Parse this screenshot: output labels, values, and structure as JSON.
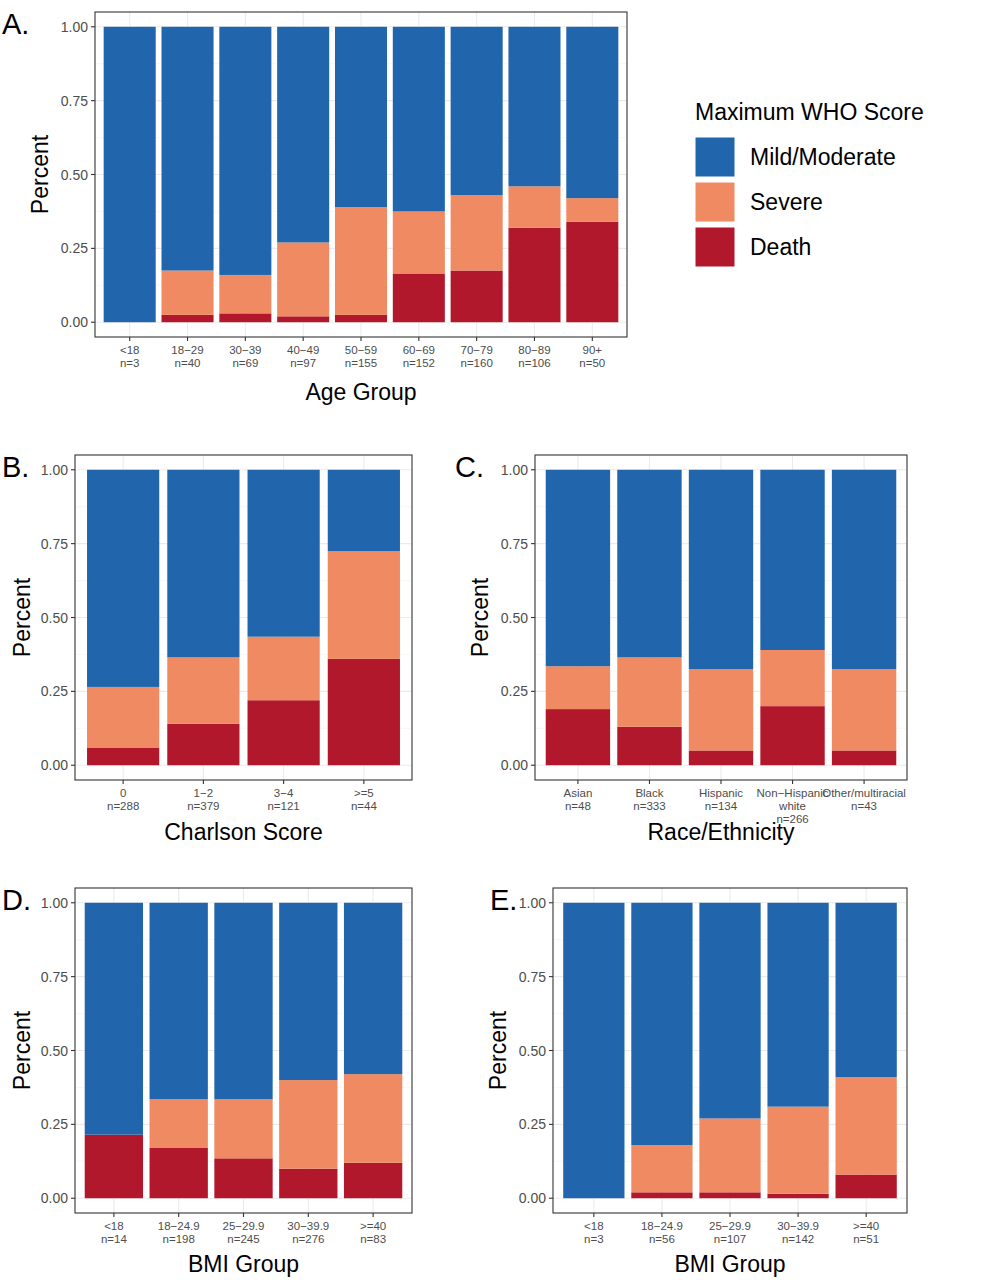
{
  "chart_data": [
    {
      "type": "bar",
      "stacked": true,
      "grid": true,
      "title": "A.",
      "x_label": "Age Group",
      "y_label": "Percent",
      "legend": "right",
      "legend_title": "Maximum WHO Score",
      "categories": [
        "<18\nn=3",
        "18−29\nn=40",
        "30−39\nn=69",
        "40−49\nn=97",
        "50−59\nn=155",
        "60−69\nn=152",
        "70−79\nn=160",
        "80−89\nn=106",
        "90+\nn=50"
      ],
      "series": [
        {
          "name": "Mild/Moderate",
          "color": "#2166ac",
          "values": [
            1.0,
            0.825,
            0.84,
            0.73,
            0.61,
            0.625,
            0.57,
            0.54,
            0.58
          ]
        },
        {
          "name": "Severe",
          "color": "#ef8a62",
          "values": [
            0.0,
            0.15,
            0.13,
            0.25,
            0.365,
            0.21,
            0.255,
            0.14,
            0.08
          ]
        },
        {
          "name": "Death",
          "color": "#b2182b",
          "values": [
            0.0,
            0.025,
            0.03,
            0.02,
            0.025,
            0.165,
            0.175,
            0.32,
            0.34
          ]
        }
      ],
      "ylim": [
        -0.05,
        1.05
      ],
      "yticks": [
        {
          "value": 0,
          "label": "0.00"
        },
        {
          "value": 0.25,
          "label": "0.25"
        },
        {
          "value": 0.5,
          "label": "0.50"
        },
        {
          "value": 0.75,
          "label": "0.75"
        },
        {
          "value": 1,
          "label": "1.00"
        }
      ]
    },
    {
      "type": "bar",
      "stacked": true,
      "grid": true,
      "title": "B.",
      "x_label": "Charlson Score",
      "y_label": "Percent",
      "categories": [
        "0\nn=288",
        "1−2\nn=379",
        "3−4\nn=121",
        ">=5\nn=44"
      ],
      "series": [
        {
          "color": "#2166ac",
          "values": [
            0.735,
            0.635,
            0.565,
            0.275
          ]
        },
        {
          "color": "#ef8a62",
          "values": [
            0.205,
            0.225,
            0.215,
            0.365
          ]
        },
        {
          "color": "#b2182b",
          "values": [
            0.06,
            0.14,
            0.22,
            0.36
          ]
        }
      ],
      "ylim": [
        -0.05,
        1.05
      ],
      "yticks": [
        {
          "value": 0,
          "label": "0.00"
        },
        {
          "value": 0.25,
          "label": "0.25"
        },
        {
          "value": 0.5,
          "label": "0.50"
        },
        {
          "value": 0.75,
          "label": "0.75"
        },
        {
          "value": 1,
          "label": "1.00"
        }
      ]
    },
    {
      "type": "bar",
      "stacked": true,
      "grid": true,
      "title": "C.",
      "x_label": "Race/Ethnicity",
      "y_label": "Percent",
      "categories": [
        "Asian\nn=48",
        "Black\nn=333",
        "Hispanic\nn=134",
        "Non−Hispanic\nwhite\nn=266",
        "Other/multiracial\nn=43"
      ],
      "series": [
        {
          "color": "#2166ac",
          "values": [
            0.665,
            0.635,
            0.675,
            0.61,
            0.675
          ]
        },
        {
          "color": "#ef8a62",
          "values": [
            0.145,
            0.235,
            0.275,
            0.19,
            0.275
          ]
        },
        {
          "color": "#b2182b",
          "values": [
            0.19,
            0.13,
            0.05,
            0.2,
            0.05
          ]
        }
      ],
      "ylim": [
        -0.05,
        1.05
      ],
      "yticks": [
        {
          "value": 0,
          "label": "0.00"
        },
        {
          "value": 0.25,
          "label": "0.25"
        },
        {
          "value": 0.5,
          "label": "0.50"
        },
        {
          "value": 0.75,
          "label": "0.75"
        },
        {
          "value": 1,
          "label": "1.00"
        }
      ]
    },
    {
      "type": "bar",
      "stacked": true,
      "grid": true,
      "title": "D.",
      "x_label": "BMI Group",
      "y_label": "Percent",
      "categories": [
        "<18\nn=14",
        "18−24.9\nn=198",
        "25−29.9\nn=245",
        "30−39.9\nn=276",
        ">=40\nn=83"
      ],
      "series": [
        {
          "color": "#2166ac",
          "values": [
            0.785,
            0.665,
            0.665,
            0.6,
            0.58
          ]
        },
        {
          "color": "#ef8a62",
          "values": [
            0.0,
            0.165,
            0.2,
            0.3,
            0.3
          ]
        },
        {
          "color": "#b2182b",
          "values": [
            0.215,
            0.17,
            0.135,
            0.1,
            0.12
          ]
        }
      ],
      "ylim": [
        -0.05,
        1.05
      ],
      "yticks": [
        {
          "value": 0,
          "label": "0.00"
        },
        {
          "value": 0.25,
          "label": "0.25"
        },
        {
          "value": 0.5,
          "label": "0.50"
        },
        {
          "value": 0.75,
          "label": "0.75"
        },
        {
          "value": 1,
          "label": "1.00"
        }
      ]
    },
    {
      "type": "bar",
      "stacked": true,
      "grid": true,
      "title": "E.",
      "x_label": "BMI Group",
      "y_label": "Percent",
      "categories": [
        "<18\nn=3",
        "18−24.9\nn=56",
        "25−29.9\nn=107",
        "30−39.9\nn=142",
        ">=40\nn=51"
      ],
      "series": [
        {
          "color": "#2166ac",
          "values": [
            1.0,
            0.82,
            0.73,
            0.69,
            0.59
          ]
        },
        {
          "color": "#ef8a62",
          "values": [
            0.0,
            0.16,
            0.25,
            0.295,
            0.33
          ]
        },
        {
          "color": "#b2182b",
          "values": [
            0.0,
            0.02,
            0.02,
            0.015,
            0.08
          ]
        }
      ],
      "ylim": [
        -0.05,
        1.05
      ],
      "yticks": [
        {
          "value": 0,
          "label": "0.00"
        },
        {
          "value": 0.25,
          "label": "0.25"
        },
        {
          "value": 0.5,
          "label": "0.50"
        },
        {
          "value": 0.75,
          "label": "0.75"
        },
        {
          "value": 1,
          "label": "1.00"
        }
      ]
    }
  ]
}
